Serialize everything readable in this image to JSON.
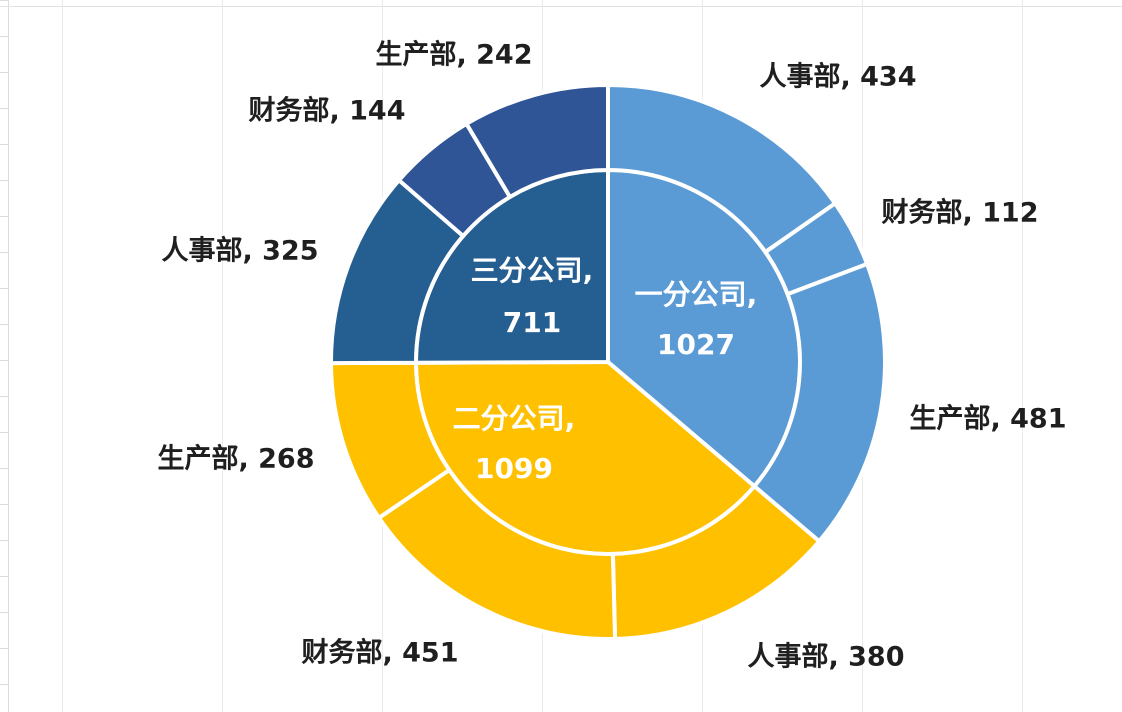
{
  "chart_data": {
    "type": "pie",
    "subtype": "sunburst",
    "title": "",
    "inner_ring": [
      {
        "label": "一分公司",
        "value": 1027,
        "color": "#5b9bd5"
      },
      {
        "label": "二分公司",
        "value": 1099,
        "color": "#ffc000"
      },
      {
        "label": "三分公司",
        "value": 711,
        "color": "#255e91"
      }
    ],
    "outer_ring": [
      {
        "parent": "一分公司",
        "label": "人事部",
        "value": 434,
        "color": "#5b9bd5"
      },
      {
        "parent": "一分公司",
        "label": "财务部",
        "value": 112,
        "color": "#5b9bd5"
      },
      {
        "parent": "一分公司",
        "label": "生产部",
        "value": 481,
        "color": "#5b9bd5"
      },
      {
        "parent": "二分公司",
        "label": "人事部",
        "value": 380,
        "color": "#ffc000"
      },
      {
        "parent": "二分公司",
        "label": "财务部",
        "value": 451,
        "color": "#ffc000"
      },
      {
        "parent": "二分公司",
        "label": "生产部",
        "value": 268,
        "color": "#ffc000"
      },
      {
        "parent": "三分公司",
        "label": "人事部",
        "value": 325,
        "color": "#255e91"
      },
      {
        "parent": "三分公司",
        "label": "财务部",
        "value": 144,
        "color": "#2f5597"
      },
      {
        "parent": "三分公司",
        "label": "生产部",
        "value": 242,
        "color": "#2f5597"
      }
    ],
    "label_format": "{label}, {value}",
    "legend": "none",
    "grid": false
  }
}
